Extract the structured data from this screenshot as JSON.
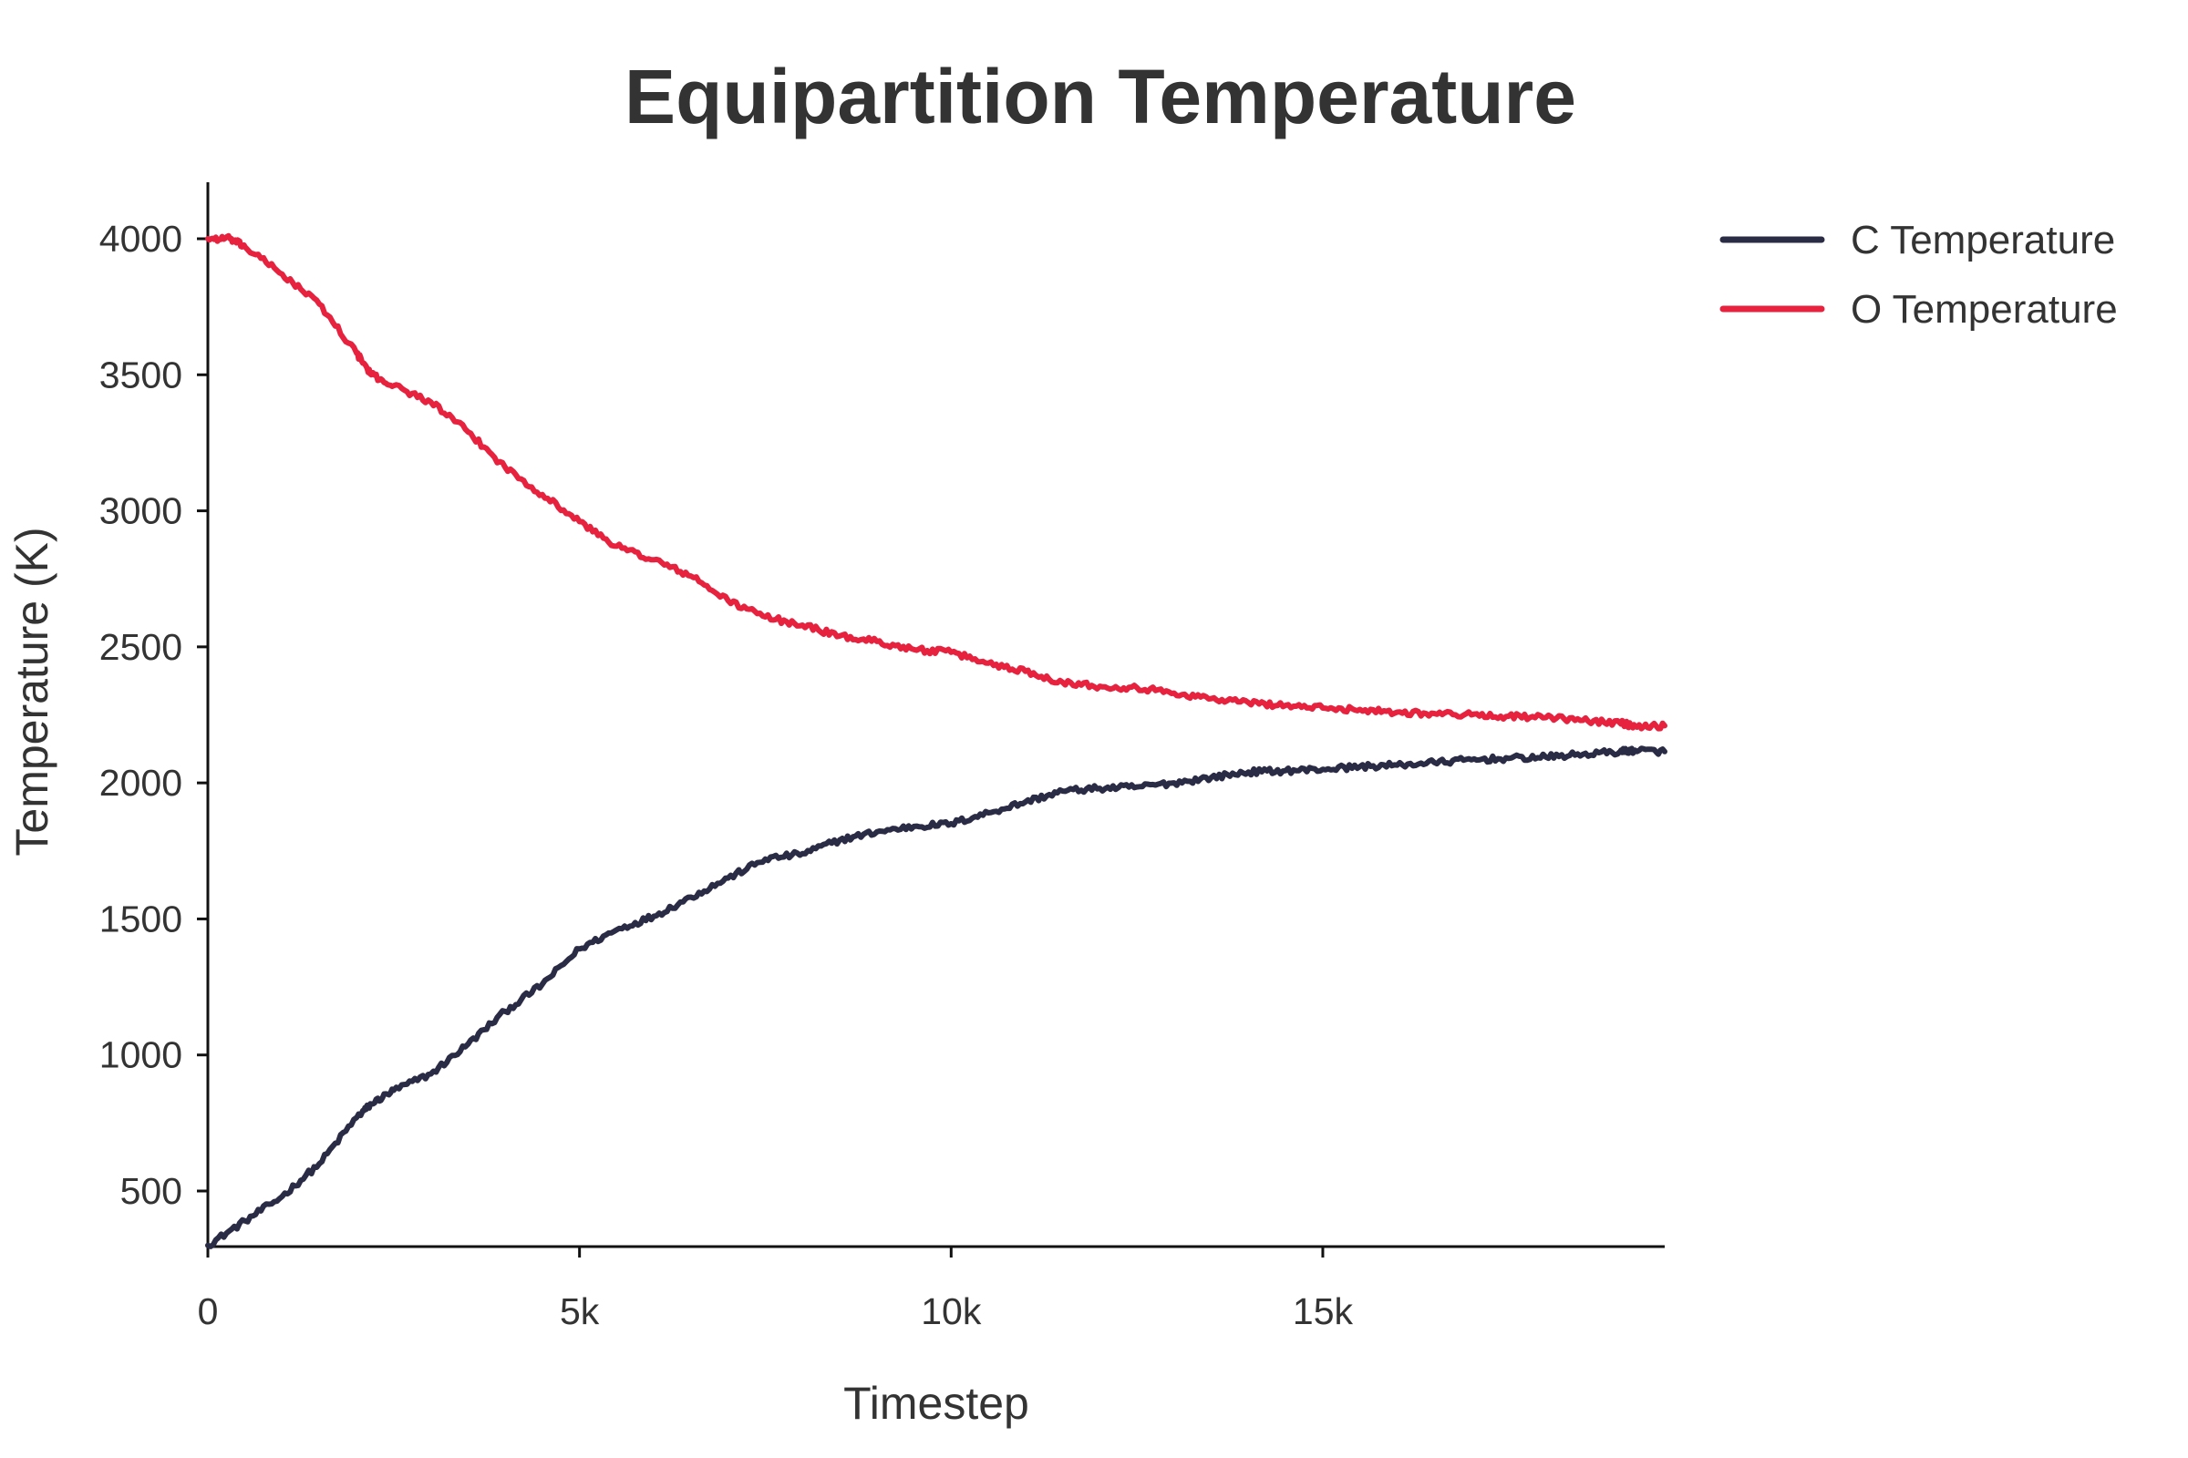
{
  "chart_data": {
    "type": "line",
    "title": "Equipartition Temperature",
    "xlabel": "Timestep",
    "ylabel": "Temperature (K)",
    "xlim": [
      0,
      19600
    ],
    "ylim": [
      100,
      4200
    ],
    "x_ticks": [
      {
        "value": 0,
        "label": "0"
      },
      {
        "value": 5000,
        "label": "5k"
      },
      {
        "value": 10000,
        "label": "10k"
      },
      {
        "value": 15000,
        "label": "15k"
      }
    ],
    "y_ticks": [
      {
        "value": 500,
        "label": "500"
      },
      {
        "value": 1000,
        "label": "1000"
      },
      {
        "value": 1500,
        "label": "1500"
      },
      {
        "value": 2000,
        "label": "2000"
      },
      {
        "value": 2500,
        "label": "2500"
      },
      {
        "value": 3000,
        "label": "3000"
      },
      {
        "value": 3500,
        "label": "3500"
      },
      {
        "value": 4000,
        "label": "4000"
      }
    ],
    "grid": false,
    "legend_position": "top-right",
    "series": [
      {
        "name": "C Temperature",
        "color": "#2a2b45",
        "x": [
          0,
          500,
          1000,
          1500,
          2000,
          2200,
          2500,
          3000,
          3500,
          4000,
          4500,
          5000,
          5500,
          6000,
          6500,
          7000,
          7500,
          8000,
          8500,
          9000,
          9500,
          10000,
          10500,
          11000,
          11500,
          12000,
          12500,
          13000,
          13500,
          14000,
          14500,
          15000,
          15500,
          16000,
          16500,
          17000,
          17500,
          18000,
          18500,
          19000,
          19200,
          19600
        ],
        "y": [
          300,
          390,
          480,
          600,
          770,
          820,
          870,
          930,
          1040,
          1160,
          1260,
          1390,
          1460,
          1510,
          1580,
          1650,
          1720,
          1740,
          1790,
          1820,
          1840,
          1850,
          1890,
          1930,
          1970,
          1980,
          1985,
          2000,
          2020,
          2040,
          2045,
          2050,
          2060,
          2065,
          2075,
          2085,
          2090,
          2095,
          2105,
          2115,
          2120,
          2115
        ]
      },
      {
        "name": "O Temperature",
        "color": "#e6223f",
        "x": [
          0,
          300,
          500,
          1000,
          1500,
          2000,
          2200,
          2500,
          3000,
          3500,
          4000,
          4500,
          5000,
          5500,
          6000,
          6500,
          7000,
          7500,
          8000,
          8500,
          9000,
          9500,
          10000,
          10500,
          11000,
          11500,
          12000,
          12500,
          13000,
          13500,
          14000,
          14500,
          15000,
          15500,
          16000,
          16500,
          17000,
          17500,
          18000,
          18500,
          19000,
          19200,
          19600
        ],
        "y": [
          4000,
          4000,
          3970,
          3870,
          3760,
          3580,
          3500,
          3460,
          3400,
          3290,
          3160,
          3060,
          2960,
          2870,
          2820,
          2760,
          2670,
          2610,
          2580,
          2540,
          2520,
          2490,
          2480,
          2440,
          2410,
          2370,
          2355,
          2350,
          2330,
          2310,
          2295,
          2285,
          2275,
          2270,
          2260,
          2255,
          2250,
          2245,
          2240,
          2230,
          2220,
          2210,
          2210
        ]
      }
    ]
  }
}
